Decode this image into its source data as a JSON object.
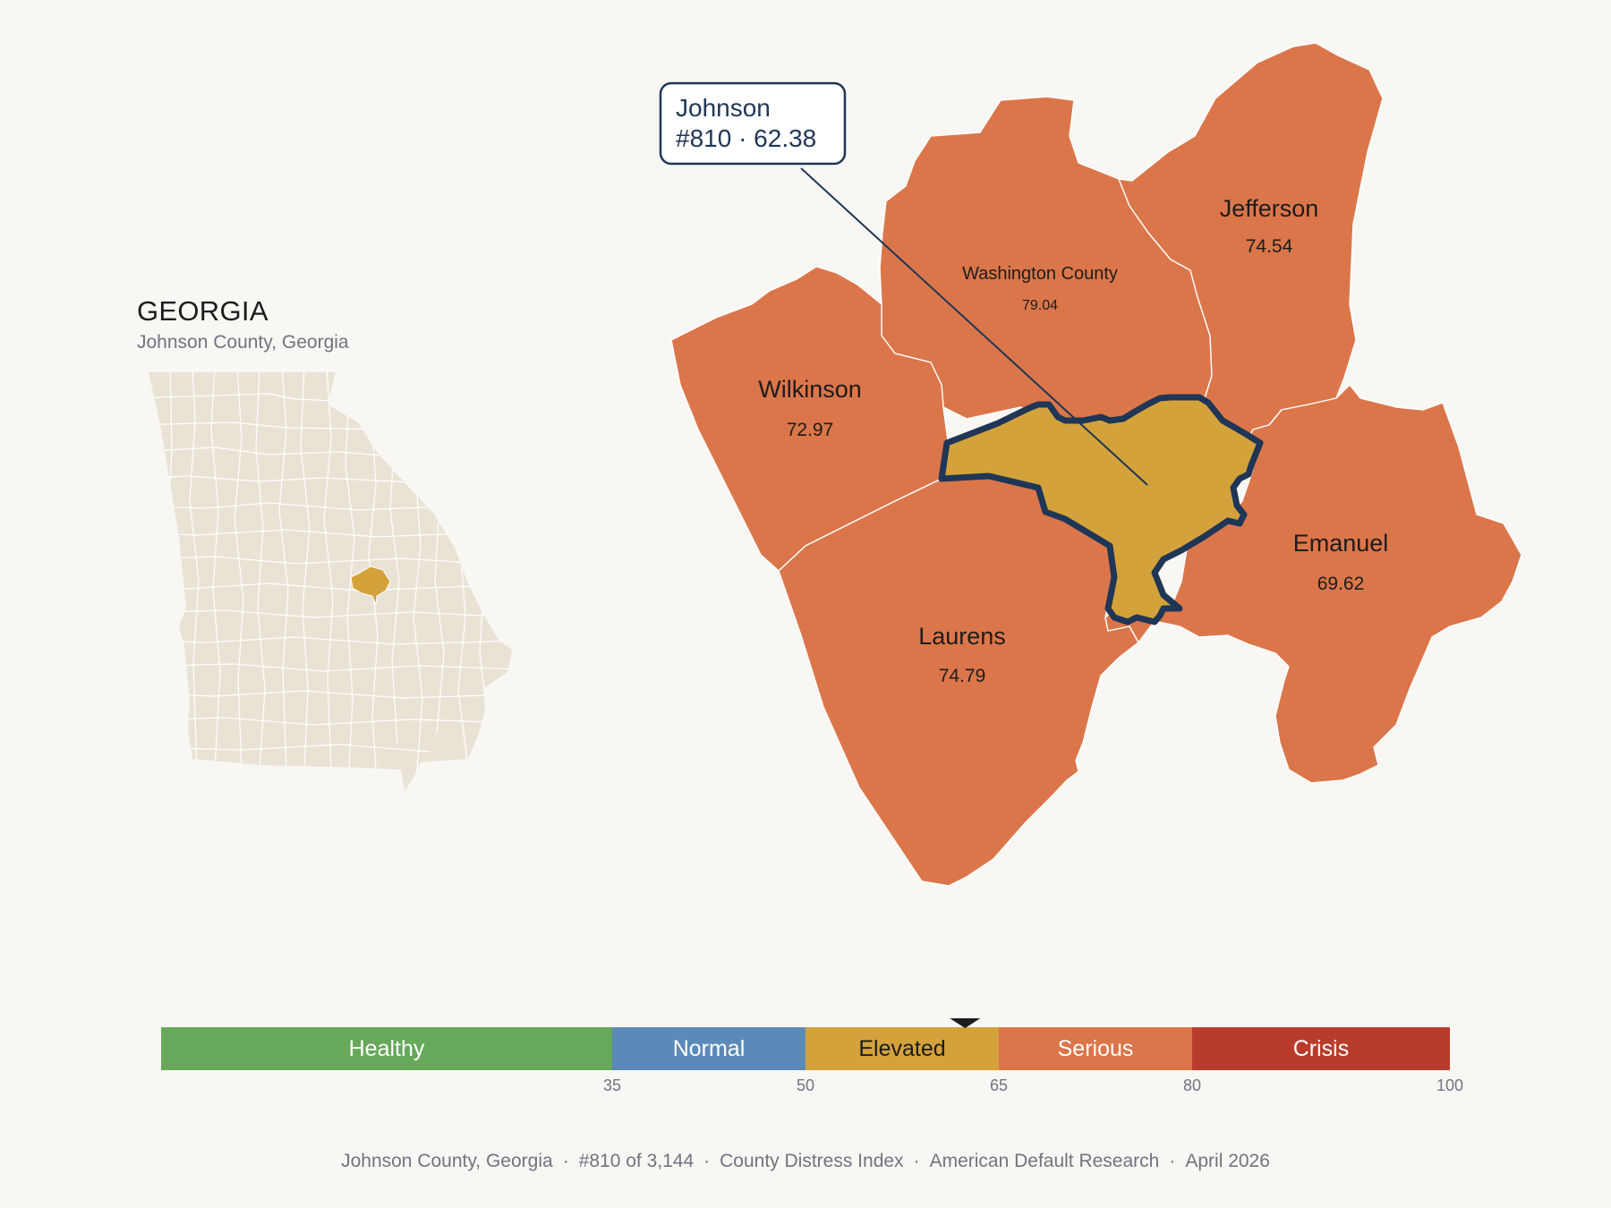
{
  "inset": {
    "state_title": "GEORGIA",
    "subtitle": "Johnson County, Georgia"
  },
  "callout": {
    "line1": "Johnson",
    "line2": "#810 · 62.38"
  },
  "counties": [
    {
      "name": "Washington County",
      "value": "79.04",
      "band": "Serious"
    },
    {
      "name": "Jefferson",
      "value": "74.54",
      "band": "Serious"
    },
    {
      "name": "Wilkinson",
      "value": "72.97",
      "band": "Serious"
    },
    {
      "name": "Emanuel",
      "value": "69.62",
      "band": "Serious"
    },
    {
      "name": "Laurens",
      "value": "74.79",
      "band": "Serious"
    },
    {
      "name": "Johnson",
      "value": "62.38",
      "band": "Elevated",
      "highlighted": true
    }
  ],
  "scale": {
    "bands": [
      {
        "label": "Healthy",
        "from": 0,
        "to": 35,
        "color": "#67a85a"
      },
      {
        "label": "Normal",
        "from": 35,
        "to": 50,
        "color": "#5b8ab9"
      },
      {
        "label": "Elevated",
        "from": 50,
        "to": 65,
        "color": "#d4a23b"
      },
      {
        "label": "Serious",
        "from": 65,
        "to": 80,
        "color": "#db764a"
      },
      {
        "label": "Crisis",
        "from": 80,
        "to": 100,
        "color": "#b83c2c"
      }
    ],
    "ticks": [
      "35",
      "50",
      "65",
      "80",
      "100"
    ],
    "marker_value": 62.38
  },
  "footer": {
    "place": "Johnson County, Georgia",
    "rank": "#810 of 3,144",
    "index": "County Distress Index",
    "source": "American Default Research",
    "date": "April 2026"
  },
  "colors": {
    "serious": "#db764a",
    "elevated": "#d4a23b",
    "outline": "#1f3656",
    "inset_fill": "#e9e3d6",
    "background": "#f9f7f3"
  }
}
